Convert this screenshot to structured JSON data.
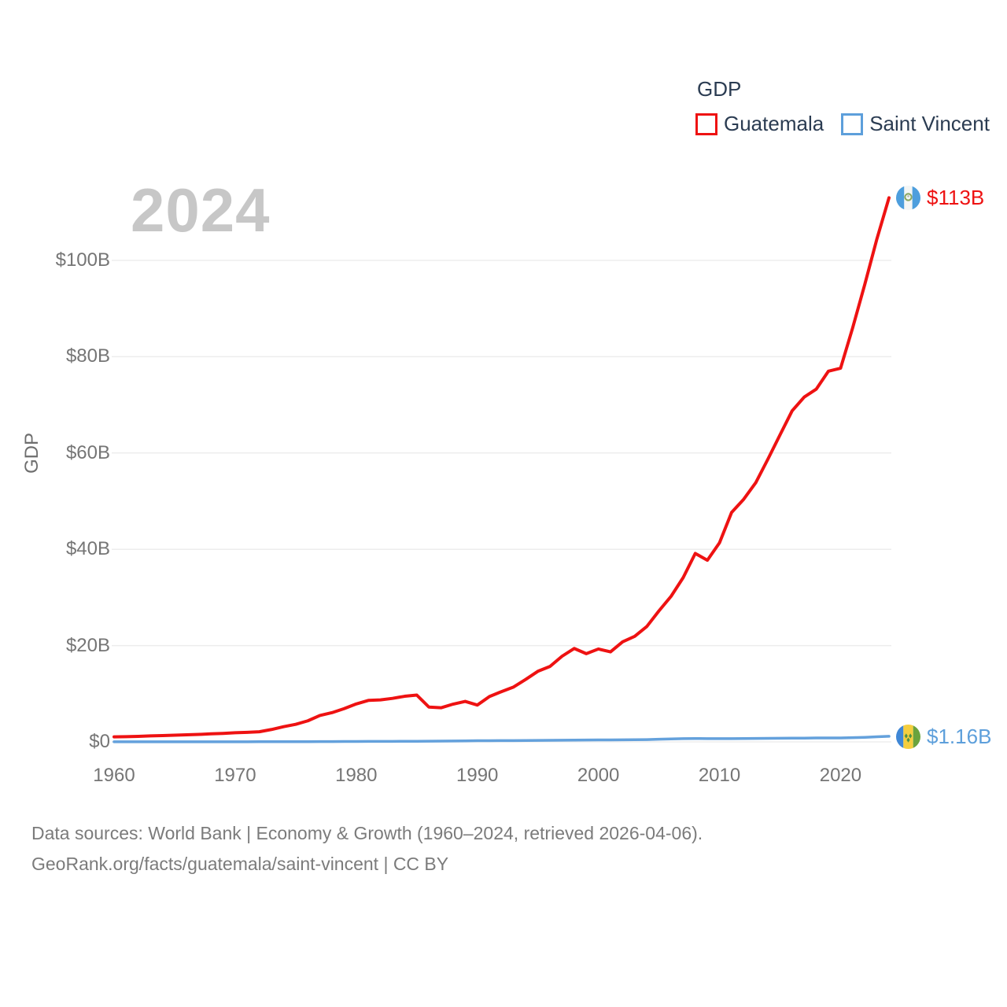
{
  "watermark_year": "2024",
  "legend": {
    "title": "GDP",
    "items": [
      {
        "label": "Guatemala",
        "color": "#ee1212"
      },
      {
        "label": "Saint Vincent",
        "color": "#5d9fdb"
      }
    ]
  },
  "y_axis_title": "GDP",
  "end_labels": {
    "guatemala": {
      "value": "$113B",
      "flag": "guatemala-flag"
    },
    "saint_vincent": {
      "value": "$1.16B",
      "flag": "saint-vincent-flag"
    }
  },
  "footer": {
    "line1": "Data sources: World Bank | Economy & Growth (1960–2024, retrieved 2026-04-06).",
    "line2": "GeoRank.org/facts/guatemala/saint-vincent | CC BY"
  },
  "colors": {
    "guatemala_line": "#ee1212",
    "saint_vincent_line": "#64a1dc",
    "gridline": "#ededed",
    "axis_text": "#757575",
    "legend_text": "#2b3c52",
    "watermark": "#c7c7c7",
    "footer_text": "#7b7b7b"
  },
  "chart_data": {
    "type": "line",
    "title": "GDP",
    "ylabel": "GDP",
    "xlabel": "",
    "grid": "horizontal",
    "legend_position": "top-right",
    "xlim": [
      1960,
      2024
    ],
    "ylim": [
      0,
      113
    ],
    "xticks": [
      1960,
      1970,
      1980,
      1990,
      2000,
      2010,
      2020
    ],
    "yticks": [
      0,
      20,
      40,
      60,
      80,
      100
    ],
    "ytick_labels": [
      "$0",
      "$20B",
      "$40B",
      "$60B",
      "$80B",
      "$100B"
    ],
    "x": [
      1960,
      1961,
      1962,
      1963,
      1964,
      1965,
      1966,
      1967,
      1968,
      1969,
      1970,
      1971,
      1972,
      1973,
      1974,
      1975,
      1976,
      1977,
      1978,
      1979,
      1980,
      1981,
      1982,
      1983,
      1984,
      1985,
      1986,
      1987,
      1988,
      1989,
      1990,
      1991,
      1992,
      1993,
      1994,
      1995,
      1996,
      1997,
      1998,
      1999,
      2000,
      2001,
      2002,
      2003,
      2004,
      2005,
      2006,
      2007,
      2008,
      2009,
      2010,
      2011,
      2012,
      2013,
      2014,
      2015,
      2016,
      2017,
      2018,
      2019,
      2020,
      2021,
      2022,
      2023,
      2024
    ],
    "series": [
      {
        "name": "Guatemala",
        "color": "#ee1212",
        "end_label": "$113B",
        "values": [
          1.04,
          1.08,
          1.14,
          1.24,
          1.31,
          1.39,
          1.47,
          1.55,
          1.67,
          1.76,
          1.9,
          1.98,
          2.1,
          2.57,
          3.16,
          3.65,
          4.37,
          5.48,
          6.07,
          6.9,
          7.88,
          8.61,
          8.72,
          9.04,
          9.47,
          9.72,
          7.23,
          7.08,
          7.84,
          8.41,
          7.65,
          9.41,
          10.44,
          11.4,
          12.98,
          14.66,
          15.67,
          17.79,
          19.4,
          18.32,
          19.29,
          18.7,
          20.78,
          21.92,
          23.97,
          27.21,
          30.23,
          34.11,
          39.14,
          37.73,
          41.34,
          47.65,
          50.39,
          53.85,
          58.72,
          63.77,
          68.76,
          71.62,
          73.28,
          77.0,
          77.6,
          86.0,
          95.0,
          104.45,
          113.0
        ]
      },
      {
        "name": "Saint Vincent",
        "color": "#64a1dc",
        "end_label": "$1.16B",
        "values": [
          0.013,
          0.014,
          0.015,
          0.016,
          0.017,
          0.018,
          0.02,
          0.021,
          0.023,
          0.025,
          0.027,
          0.03,
          0.033,
          0.036,
          0.04,
          0.045,
          0.05,
          0.057,
          0.065,
          0.074,
          0.083,
          0.092,
          0.1,
          0.108,
          0.117,
          0.127,
          0.141,
          0.158,
          0.18,
          0.203,
          0.24,
          0.253,
          0.268,
          0.275,
          0.283,
          0.305,
          0.32,
          0.339,
          0.36,
          0.38,
          0.399,
          0.413,
          0.426,
          0.442,
          0.477,
          0.551,
          0.609,
          0.668,
          0.695,
          0.675,
          0.681,
          0.676,
          0.693,
          0.721,
          0.728,
          0.755,
          0.771,
          0.785,
          0.811,
          0.825,
          0.807,
          0.872,
          0.947,
          1.07,
          1.16
        ]
      }
    ]
  }
}
